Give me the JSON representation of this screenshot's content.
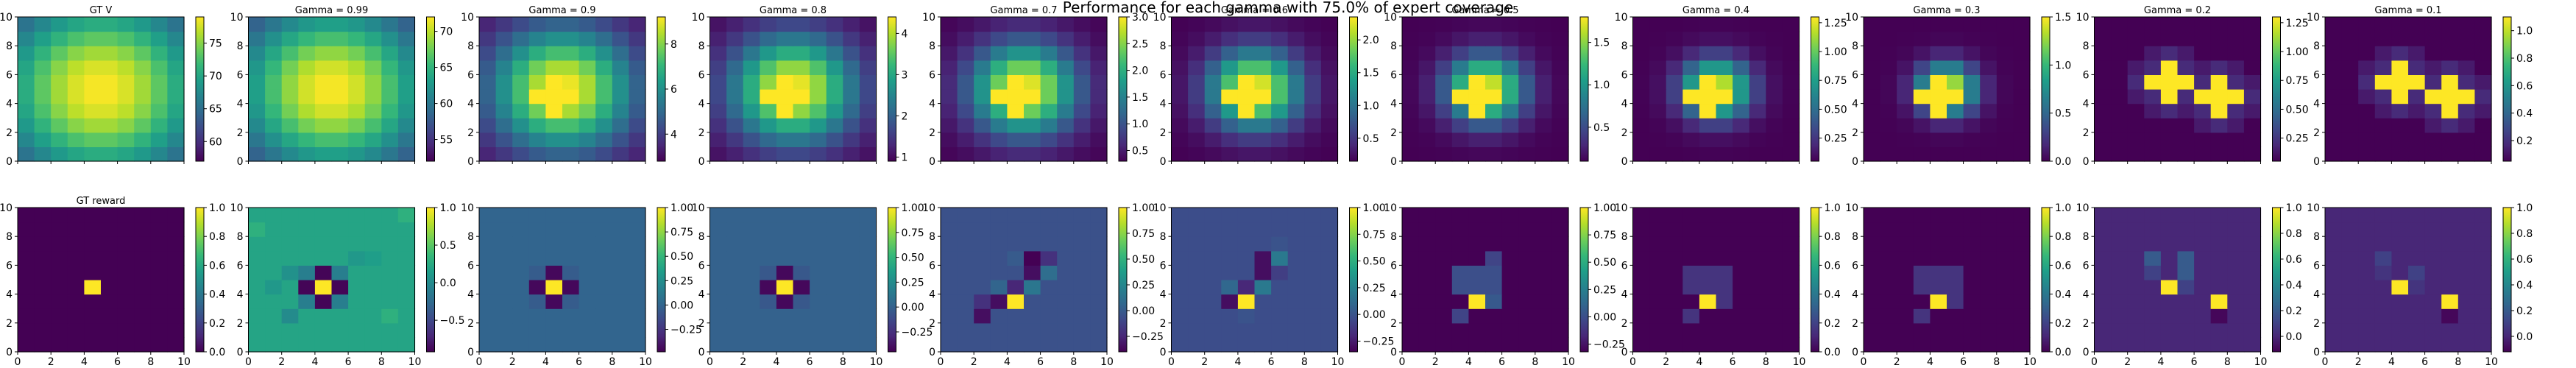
{
  "figure": {
    "title": "Performance for each gamma with 75.0% of expert coverage"
  },
  "colors": {
    "viridis_stops": [
      "#440154",
      "#482878",
      "#3e4989",
      "#31688e",
      "#26828e",
      "#1f9e89",
      "#35b779",
      "#6ece58",
      "#b5de2b",
      "#fde725"
    ]
  },
  "chart_data": [
    {
      "row": 0,
      "col": 0,
      "type": "heatmap",
      "title": "GT V",
      "kind": "gauss",
      "vmin": 57,
      "vmax": 79,
      "sigma": 4.6,
      "colorbar_ticks": [
        60,
        65,
        70,
        75
      ],
      "xlim": [
        0,
        10
      ],
      "ylim": [
        0,
        10
      ],
      "xticks": [
        0,
        2,
        4,
        6,
        8,
        10
      ],
      "yticks": [
        0,
        2,
        4,
        6,
        8,
        10
      ]
    },
    {
      "row": 0,
      "col": 1,
      "type": "heatmap",
      "title": "Gamma = 0.99",
      "kind": "gauss",
      "vmin": 52,
      "vmax": 72,
      "sigma": 4.2,
      "colorbar_ticks": [
        55,
        60,
        65,
        70
      ],
      "xlim": [
        0,
        10
      ],
      "ylim": [
        0,
        10
      ],
      "xticks": [
        0,
        2,
        4,
        6,
        8,
        10
      ],
      "yticks": [
        0,
        2,
        4,
        6,
        8,
        10
      ]
    },
    {
      "row": 0,
      "col": 2,
      "type": "heatmap",
      "title": "Gamma = 0.9",
      "kind": "gauss",
      "vmin": 2.8,
      "vmax": 9.2,
      "sigma": 3.0,
      "plus": 1,
      "colorbar_ticks": [
        4,
        6,
        8
      ],
      "xlim": [
        0,
        10
      ],
      "ylim": [
        0,
        10
      ],
      "xticks": [
        0,
        2,
        4,
        6,
        8,
        10
      ],
      "yticks": [
        0,
        2,
        4,
        6,
        8,
        10
      ]
    },
    {
      "row": 0,
      "col": 3,
      "type": "heatmap",
      "title": "Gamma = 0.8",
      "kind": "gauss",
      "vmin": 0.9,
      "vmax": 4.4,
      "sigma": 2.6,
      "plus": 1,
      "colorbar_ticks": [
        1,
        2,
        3,
        4
      ],
      "xlim": [
        0,
        10
      ],
      "ylim": [
        0,
        10
      ],
      "xticks": [
        0,
        2,
        4,
        6,
        8,
        10
      ],
      "yticks": [
        0,
        2,
        4,
        6,
        8,
        10
      ]
    },
    {
      "row": 0,
      "col": 4,
      "type": "heatmap",
      "title": "Gamma = 0.7",
      "kind": "gauss",
      "vmin": 0.3,
      "vmax": 3.0,
      "sigma": 2.2,
      "plus": 1,
      "colorbar_ticks": [
        0.5,
        1.0,
        1.5,
        2.0,
        2.5,
        3.0
      ],
      "xlim": [
        0,
        10
      ],
      "ylim": [
        0,
        10
      ],
      "xticks": [
        0,
        2,
        4,
        6,
        8,
        10
      ],
      "yticks": [
        0,
        2,
        4,
        6,
        8,
        10
      ]
    },
    {
      "row": 0,
      "col": 5,
      "type": "heatmap",
      "title": "Gamma = 0.6",
      "kind": "gauss",
      "vmin": 0.15,
      "vmax": 2.35,
      "sigma": 1.9,
      "plus": 1,
      "colorbar_ticks": [
        0.5,
        1.0,
        1.5,
        2.0
      ],
      "xlim": [
        0,
        10
      ],
      "ylim": [
        0,
        10
      ],
      "xticks": [
        0,
        2,
        4,
        6,
        8,
        10
      ],
      "yticks": [
        0,
        2,
        4,
        6,
        8,
        10
      ]
    },
    {
      "row": 0,
      "col": 6,
      "type": "heatmap",
      "title": "Gamma = 0.5",
      "kind": "gauss",
      "vmin": 0.1,
      "vmax": 1.8,
      "sigma": 1.6,
      "plus": 1,
      "colorbar_ticks": [
        0.5,
        1.0,
        1.5
      ],
      "xlim": [
        0,
        10
      ],
      "ylim": [
        0,
        10
      ],
      "xticks": [
        0,
        2,
        4,
        6,
        8,
        10
      ],
      "yticks": [
        0,
        2,
        4,
        6,
        8,
        10
      ]
    },
    {
      "row": 0,
      "col": 7,
      "type": "heatmap",
      "title": "Gamma = 0.4",
      "kind": "gauss",
      "vmin": 0.05,
      "vmax": 1.3,
      "sigma": 1.4,
      "plus": 1,
      "colorbar_ticks": [
        0.25,
        0.5,
        0.75,
        1.0,
        1.25
      ],
      "xlim": [
        0,
        10
      ],
      "ylim": [
        0,
        10
      ],
      "xticks": [
        0,
        2,
        4,
        6,
        8,
        10
      ],
      "yticks": [
        0,
        2,
        4,
        6,
        8,
        10
      ]
    },
    {
      "row": 0,
      "col": 8,
      "type": "heatmap",
      "title": "Gamma = 0.3",
      "kind": "gauss",
      "vmin": 0.0,
      "vmax": 1.5,
      "sigma": 1.2,
      "plus": 1,
      "colorbar_ticks": [
        0.0,
        0.5,
        1.0,
        1.5
      ],
      "xlim": [
        0,
        10
      ],
      "ylim": [
        0,
        10
      ],
      "xticks": [
        0,
        2,
        4,
        6,
        8,
        10
      ],
      "yticks": [
        0,
        2,
        4,
        6,
        8,
        10
      ]
    },
    {
      "row": 0,
      "col": 9,
      "type": "heatmap",
      "title": "Gamma = 0.2",
      "kind": "plus2",
      "vmin": 0.05,
      "vmax": 1.3,
      "colorbar_ticks": [
        0.25,
        0.5,
        0.75,
        1.0,
        1.25
      ],
      "xlim": [
        0,
        10
      ],
      "ylim": [
        0,
        10
      ],
      "xticks": [
        0,
        2,
        4,
        6,
        8,
        10
      ],
      "yticks": [
        0,
        2,
        4,
        6,
        8,
        10
      ]
    },
    {
      "row": 0,
      "col": 10,
      "type": "heatmap",
      "title": "Gamma = 0.1",
      "kind": "plus2",
      "vmin": 0.05,
      "vmax": 1.1,
      "colorbar_ticks": [
        0.2,
        0.4,
        0.6,
        0.8,
        1.0
      ],
      "xlim": [
        0,
        10
      ],
      "ylim": [
        0,
        10
      ],
      "xticks": [
        0,
        2,
        4,
        6,
        8,
        10
      ],
      "yticks": [
        0,
        2,
        4,
        6,
        8,
        10
      ]
    },
    {
      "row": 1,
      "col": 0,
      "type": "heatmap",
      "title": "GT reward",
      "kind": "reward",
      "vmin": 0,
      "vmax": 1,
      "colorbar_ticks": [
        0.0,
        0.2,
        0.4,
        0.6,
        0.8,
        1.0
      ],
      "xlim": [
        0,
        10
      ],
      "ylim": [
        0,
        10
      ],
      "xticks": [
        0,
        2,
        4,
        6,
        8,
        10
      ],
      "yticks": [
        0,
        2,
        4,
        6,
        8,
        10
      ]
    },
    {
      "row": 1,
      "col": 1,
      "type": "heatmap",
      "title": "",
      "kind": "est",
      "vmin": -0.92,
      "vmax": 1.0,
      "bg": 0.2,
      "colorbar_ticks": [
        -0.5,
        0.0,
        0.5,
        1.0
      ],
      "xlim": [
        0,
        10
      ],
      "ylim": [
        0,
        10
      ],
      "xticks": [
        0,
        2,
        4,
        6,
        8,
        10
      ],
      "yticks": [
        0,
        2,
        4,
        6,
        8,
        10
      ],
      "cells": [
        [
          4,
          4,
          1
        ],
        [
          3,
          4,
          -0.9
        ],
        [
          5,
          4,
          -0.9
        ],
        [
          4,
          3,
          -0.9
        ],
        [
          4,
          5,
          -0.9
        ],
        [
          3,
          3,
          -0.1
        ],
        [
          5,
          3,
          -0.1
        ],
        [
          3,
          5,
          -0.1
        ],
        [
          5,
          5,
          -0.1
        ],
        [
          2,
          2,
          0.0
        ],
        [
          2,
          5,
          0.05
        ],
        [
          1,
          4,
          0.1
        ],
        [
          6,
          6,
          0.1
        ],
        [
          7,
          6,
          0.15
        ],
        [
          8,
          2,
          0.3
        ],
        [
          9,
          9,
          0.3
        ],
        [
          0,
          8,
          0.3
        ]
      ]
    },
    {
      "row": 1,
      "col": 2,
      "type": "heatmap",
      "title": "",
      "kind": "est",
      "vmin": -0.48,
      "vmax": 1.0,
      "bg": 0.0,
      "colorbar_ticks": [
        -0.25,
        0.0,
        0.25,
        0.5,
        0.75,
        1.0
      ],
      "xlim": [
        0,
        10
      ],
      "ylim": [
        0,
        10
      ],
      "xticks": [
        0,
        2,
        4,
        6,
        8,
        10
      ],
      "yticks": [
        0,
        2,
        4,
        6,
        8,
        10
      ],
      "cells": [
        [
          4,
          4,
          1
        ],
        [
          3,
          4,
          -0.45
        ],
        [
          5,
          4,
          -0.45
        ],
        [
          4,
          3,
          -0.45
        ],
        [
          4,
          5,
          -0.45
        ],
        [
          3,
          3,
          -0.05
        ],
        [
          5,
          3,
          -0.05
        ],
        [
          3,
          5,
          -0.05
        ],
        [
          5,
          5,
          -0.05
        ]
      ]
    },
    {
      "row": 1,
      "col": 3,
      "type": "heatmap",
      "title": "",
      "kind": "est",
      "vmin": -0.45,
      "vmax": 1.0,
      "bg": 0.0,
      "colorbar_ticks": [
        -0.25,
        0.0,
        0.25,
        0.5,
        0.75,
        1.0
      ],
      "xlim": [
        0,
        10
      ],
      "ylim": [
        0,
        10
      ],
      "xticks": [
        0,
        2,
        4,
        6,
        8,
        10
      ],
      "yticks": [
        0,
        2,
        4,
        6,
        8,
        10
      ],
      "cells": [
        [
          4,
          4,
          1
        ],
        [
          3,
          4,
          -0.42
        ],
        [
          5,
          4,
          -0.42
        ],
        [
          4,
          3,
          -0.42
        ],
        [
          4,
          5,
          -0.42
        ],
        [
          3,
          3,
          -0.05
        ],
        [
          5,
          3,
          -0.05
        ],
        [
          3,
          5,
          -0.05
        ],
        [
          5,
          5,
          -0.05
        ]
      ]
    },
    {
      "row": 1,
      "col": 4,
      "type": "heatmap",
      "title": "",
      "kind": "est",
      "vmin": -0.4,
      "vmax": 1.0,
      "bg": -0.05,
      "colorbar_ticks": [
        -0.25,
        0.0,
        0.25,
        0.5,
        0.75,
        1.0
      ],
      "xlim": [
        0,
        10
      ],
      "ylim": [
        0,
        10
      ],
      "xticks": [
        0,
        2,
        4,
        6,
        8,
        10
      ],
      "yticks": [
        0,
        2,
        4,
        6,
        8,
        10
      ],
      "cells": [
        [
          4,
          3,
          1
        ],
        [
          3,
          3,
          -0.35
        ],
        [
          4,
          4,
          -0.25
        ],
        [
          5,
          5,
          -0.35
        ],
        [
          5,
          6,
          -0.4
        ],
        [
          6,
          6,
          -0.2
        ],
        [
          2,
          2,
          -0.35
        ],
        [
          2,
          3,
          -0.2
        ],
        [
          5,
          4,
          0.15
        ],
        [
          3,
          4,
          0.05
        ],
        [
          4,
          6,
          0.0
        ],
        [
          6,
          5,
          0.1
        ]
      ]
    },
    {
      "row": 1,
      "col": 5,
      "type": "heatmap",
      "title": "",
      "kind": "est",
      "vmin": -0.35,
      "vmax": 1.0,
      "bg": -0.03,
      "colorbar_ticks": [
        -0.25,
        0.0,
        0.25,
        0.5,
        0.75,
        1.0
      ],
      "xlim": [
        0,
        10
      ],
      "ylim": [
        0,
        10
      ],
      "xticks": [
        0,
        2,
        4,
        6,
        8,
        10
      ],
      "yticks": [
        0,
        2,
        4,
        6,
        8,
        10
      ],
      "cells": [
        [
          4,
          3,
          1
        ],
        [
          3,
          3,
          -0.3
        ],
        [
          4,
          4,
          -0.2
        ],
        [
          5,
          5,
          -0.3
        ],
        [
          5,
          6,
          -0.3
        ],
        [
          6,
          6,
          0.2
        ],
        [
          6,
          7,
          0.0
        ],
        [
          5,
          4,
          0.2
        ],
        [
          3,
          4,
          0.1
        ],
        [
          4,
          2,
          0.0
        ],
        [
          6,
          5,
          -0.1
        ]
      ]
    },
    {
      "row": 1,
      "col": 6,
      "type": "heatmap",
      "title": "",
      "kind": "est",
      "vmin": -0.32,
      "vmax": 1.0,
      "bg": -0.32,
      "colorbar_ticks": [
        -0.25,
        0.0,
        0.25,
        0.5,
        0.75,
        1.0
      ],
      "xlim": [
        0,
        10
      ],
      "ylim": [
        0,
        10
      ],
      "xticks": [
        0,
        2,
        4,
        6,
        8,
        10
      ],
      "yticks": [
        0,
        2,
        4,
        6,
        8,
        10
      ],
      "cells": [
        [
          4,
          3,
          1
        ],
        [
          3,
          2,
          -0.05
        ],
        [
          3,
          4,
          0.0
        ],
        [
          4,
          4,
          0.0
        ],
        [
          5,
          4,
          0.0
        ],
        [
          3,
          5,
          0.0
        ],
        [
          4,
          5,
          0.0
        ],
        [
          5,
          5,
          0.0
        ],
        [
          5,
          6,
          -0.05
        ],
        [
          5,
          3,
          0.05
        ]
      ]
    },
    {
      "row": 1,
      "col": 7,
      "type": "heatmap",
      "title": "",
      "kind": "est",
      "vmin": 0.0,
      "vmax": 1.0,
      "bg": 0.0,
      "colorbar_ticks": [
        0.0,
        0.2,
        0.4,
        0.6,
        0.8,
        1.0
      ],
      "xlim": [
        0,
        10
      ],
      "ylim": [
        0,
        10
      ],
      "xticks": [
        0,
        2,
        4,
        6,
        8,
        10
      ],
      "yticks": [
        0,
        2,
        4,
        6,
        8,
        10
      ],
      "cells": [
        [
          4,
          3,
          1
        ],
        [
          3,
          2,
          0.15
        ],
        [
          3,
          4,
          0.15
        ],
        [
          4,
          4,
          0.15
        ],
        [
          5,
          4,
          0.15
        ],
        [
          3,
          5,
          0.15
        ],
        [
          4,
          5,
          0.15
        ],
        [
          5,
          5,
          0.15
        ],
        [
          5,
          3,
          0.15
        ]
      ]
    },
    {
      "row": 1,
      "col": 8,
      "type": "heatmap",
      "title": "",
      "kind": "est",
      "vmin": 0.0,
      "vmax": 1.0,
      "bg": 0.0,
      "colorbar_ticks": [
        0.0,
        0.2,
        0.4,
        0.6,
        0.8,
        1.0
      ],
      "xlim": [
        0,
        10
      ],
      "ylim": [
        0,
        10
      ],
      "xticks": [
        0,
        2,
        4,
        6,
        8,
        10
      ],
      "yticks": [
        0,
        2,
        4,
        6,
        8,
        10
      ],
      "cells": [
        [
          4,
          3,
          1
        ],
        [
          3,
          2,
          0.15
        ],
        [
          3,
          4,
          0.15
        ],
        [
          4,
          4,
          0.15
        ],
        [
          5,
          4,
          0.15
        ],
        [
          3,
          5,
          0.15
        ],
        [
          4,
          5,
          0.15
        ],
        [
          5,
          5,
          0.15
        ],
        [
          5,
          3,
          0.15
        ]
      ]
    },
    {
      "row": 1,
      "col": 9,
      "type": "heatmap",
      "title": "",
      "kind": "est",
      "vmin": -0.12,
      "vmax": 1.0,
      "bg": 0.0,
      "colorbar_ticks": [
        0.0,
        0.2,
        0.4,
        0.6,
        0.8,
        1.0
      ],
      "xlim": [
        0,
        10
      ],
      "ylim": [
        0,
        10
      ],
      "xticks": [
        0,
        2,
        4,
        6,
        8,
        10
      ],
      "yticks": [
        0,
        2,
        4,
        6,
        8,
        10
      ],
      "cells": [
        [
          4,
          4,
          1
        ],
        [
          7,
          3,
          1
        ],
        [
          7,
          2,
          -0.1
        ],
        [
          3,
          6,
          0.2
        ],
        [
          5,
          5,
          0.2
        ],
        [
          5,
          6,
          0.2
        ],
        [
          3,
          5,
          0.1
        ],
        [
          5,
          4,
          0.1
        ]
      ]
    },
    {
      "row": 1,
      "col": 10,
      "type": "heatmap",
      "title": "",
      "kind": "est",
      "vmin": -0.12,
      "vmax": 1.0,
      "bg": 0.0,
      "colorbar_ticks": [
        0.0,
        0.2,
        0.4,
        0.6,
        0.8,
        1.0
      ],
      "xlim": [
        0,
        10
      ],
      "ylim": [
        0,
        10
      ],
      "xticks": [
        0,
        2,
        4,
        6,
        8,
        10
      ],
      "yticks": [
        0,
        2,
        4,
        6,
        8,
        10
      ],
      "cells": [
        [
          4,
          4,
          1
        ],
        [
          7,
          3,
          1
        ],
        [
          7,
          2,
          -0.1
        ],
        [
          3,
          6,
          0.1
        ],
        [
          5,
          5,
          0.1
        ],
        [
          3,
          5,
          0.05
        ],
        [
          5,
          4,
          0.05
        ]
      ]
    }
  ]
}
